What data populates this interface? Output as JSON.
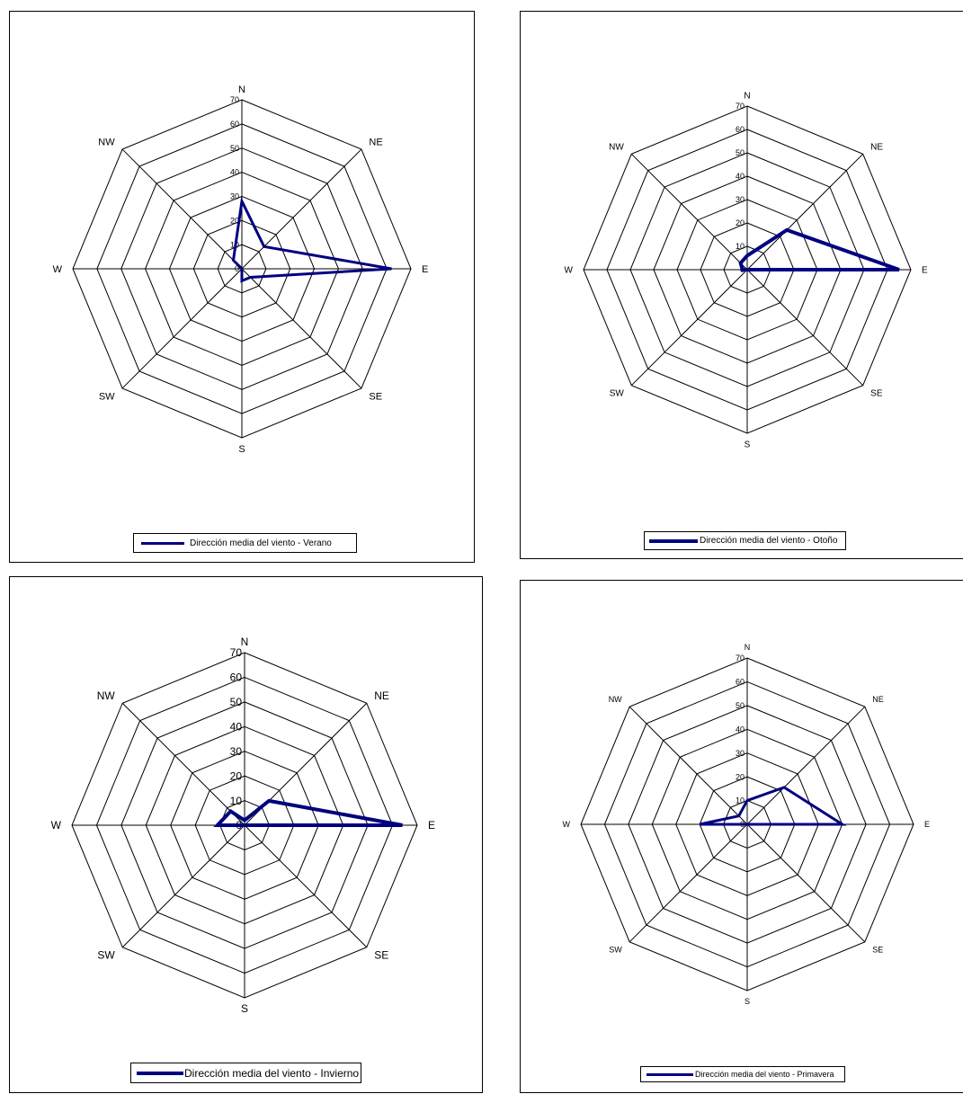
{
  "style": {
    "line_color": "#000080",
    "grid_color": "#000000",
    "background": "#ffffff"
  },
  "chart_data": [
    {
      "type": "radar",
      "categories": [
        "N",
        "NE",
        "E",
        "SE",
        "S",
        "SW",
        "W",
        "NW"
      ],
      "r_ticks": [
        "0",
        "10",
        "20",
        "30",
        "40",
        "50",
        "60",
        "70"
      ],
      "rlim": [
        0,
        70
      ],
      "series": [
        {
          "name": "Dirección media del viento - Verano",
          "values": [
            28,
            13,
            62,
            5,
            5,
            0,
            0,
            5
          ]
        }
      ],
      "legend_position": "bottom"
    },
    {
      "type": "radar",
      "categories": [
        "N",
        "NE",
        "E",
        "SE",
        "S",
        "SW",
        "W",
        "NW"
      ],
      "r_ticks": [
        "0",
        "10",
        "20",
        "30",
        "40",
        "50",
        "60",
        "70"
      ],
      "rlim": [
        0,
        70
      ],
      "series": [
        {
          "name": "Dirección media del viento - Otoño",
          "values": [
            6,
            24,
            65,
            0,
            0,
            0,
            2,
            4
          ]
        }
      ],
      "legend_position": "bottom"
    },
    {
      "type": "radar",
      "categories": [
        "N",
        "NE",
        "E",
        "SE",
        "S",
        "SW",
        "W",
        "NW"
      ],
      "r_ticks": [
        "0",
        "10",
        "20",
        "30",
        "40",
        "50",
        "60",
        "70"
      ],
      "rlim": [
        0,
        70
      ],
      "series": [
        {
          "name": "Dirección media del viento - Invierno",
          "values": [
            2,
            14,
            64,
            0,
            0,
            0,
            11,
            8
          ]
        }
      ],
      "legend_position": "bottom"
    },
    {
      "type": "radar",
      "categories": [
        "N",
        "NE",
        "E",
        "SE",
        "S",
        "SW",
        "W",
        "NW"
      ],
      "r_ticks": [
        "0",
        "10",
        "20",
        "30",
        "40",
        "50",
        "60",
        "70"
      ],
      "rlim": [
        0,
        70
      ],
      "series": [
        {
          "name": "Dirección media del viento - Primavera",
          "values": [
            10,
            22,
            40,
            0,
            0,
            0,
            20,
            5
          ]
        }
      ],
      "legend_position": "bottom"
    }
  ]
}
